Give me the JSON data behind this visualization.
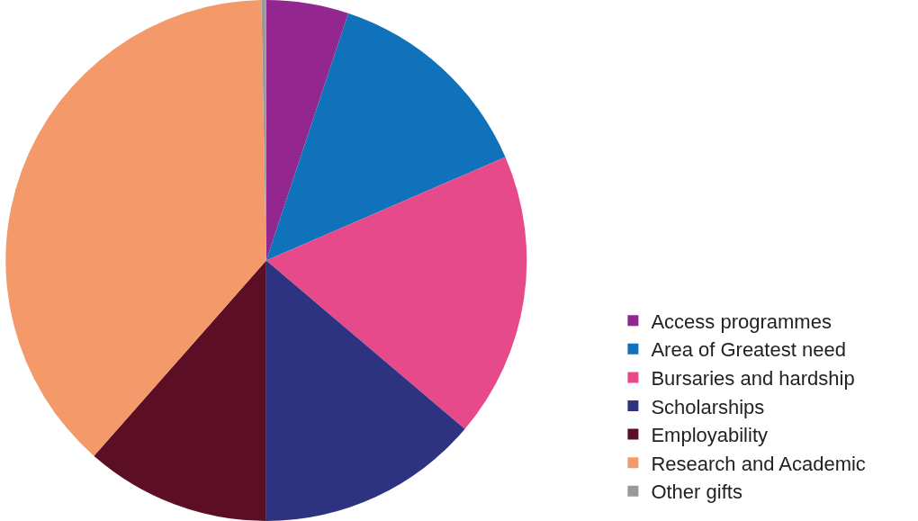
{
  "chart_data": {
    "type": "pie",
    "categories": [
      "Access programmes",
      "Area of Greatest need",
      "Bursaries and hardship",
      "Scholarships",
      "Employability",
      "Research and Academic",
      "Other gifts"
    ],
    "values": [
      5.1,
      13.4,
      17.7,
      13.8,
      11.5,
      38.2,
      0.3
    ],
    "colors": [
      "#93278f",
      "#0f72ba",
      "#e64a8b",
      "#2e3381",
      "#5c0f24",
      "#f4996a",
      "#999999"
    ],
    "legend": "bottom right"
  }
}
